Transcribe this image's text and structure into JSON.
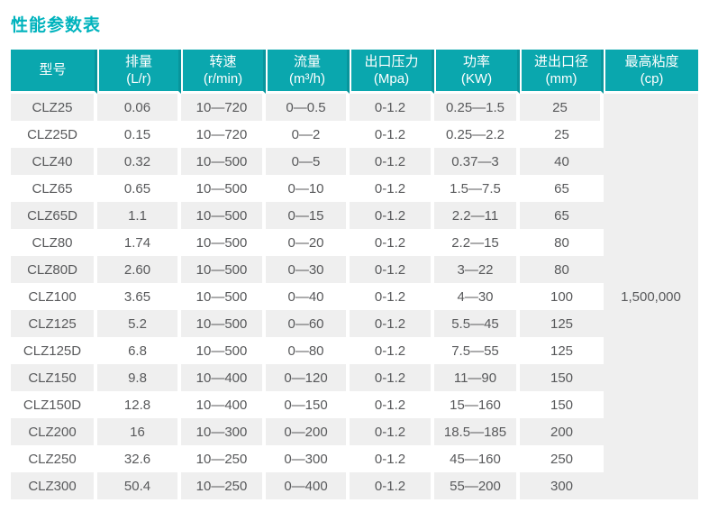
{
  "page": {
    "title": "性能参数表"
  },
  "table": {
    "columns": [
      {
        "id": "model",
        "label": "型号",
        "unit": ""
      },
      {
        "id": "displacement",
        "label": "排量",
        "unit": "(L/r)"
      },
      {
        "id": "speed",
        "label": "转速",
        "unit": "(r/min)"
      },
      {
        "id": "flow",
        "label": "流量",
        "unit": "(m³/h)"
      },
      {
        "id": "outlet-pressure",
        "label": "出口压力",
        "unit": "(Mpa)"
      },
      {
        "id": "power",
        "label": "功率",
        "unit": "(KW)"
      },
      {
        "id": "port-diameter",
        "label": "进出口径",
        "unit": "(mm)"
      },
      {
        "id": "max-viscosity",
        "label": "最高粘度",
        "unit": "(cp)"
      }
    ],
    "rows": [
      [
        "CLZ25",
        "0.06",
        "10—720",
        "0—0.5",
        "0-1.2",
        "0.25—1.5",
        "25"
      ],
      [
        "CLZ25D",
        "0.15",
        "10—720",
        "0—2",
        "0-1.2",
        "0.25—2.2",
        "25"
      ],
      [
        "CLZ40",
        "0.32",
        "10—500",
        "0—5",
        "0-1.2",
        "0.37—3",
        "40"
      ],
      [
        "CLZ65",
        "0.65",
        "10—500",
        "0—10",
        "0-1.2",
        "1.5—7.5",
        "65"
      ],
      [
        "CLZ65D",
        "1.1",
        "10—500",
        "0—15",
        "0-1.2",
        "2.2—11",
        "65"
      ],
      [
        "CLZ80",
        "1.74",
        "10—500",
        "0—20",
        "0-1.2",
        "2.2—15",
        "80"
      ],
      [
        "CLZ80D",
        "2.60",
        "10—500",
        "0—30",
        "0-1.2",
        "3—22",
        "80"
      ],
      [
        "CLZ100",
        "3.65",
        "10—500",
        "0—40",
        "0-1.2",
        "4—30",
        "100"
      ],
      [
        "CLZ125",
        "5.2",
        "10—500",
        "0—60",
        "0-1.2",
        "5.5—45",
        "125"
      ],
      [
        "CLZ125D",
        "6.8",
        "10—500",
        "0—80",
        "0-1.2",
        "7.5—55",
        "125"
      ],
      [
        "CLZ150",
        "9.8",
        "10—400",
        "0—120",
        "0-1.2",
        "11—90",
        "150"
      ],
      [
        "CLZ150D",
        "12.8",
        "10—400",
        "0—150",
        "0-1.2",
        "15—160",
        "150"
      ],
      [
        "CLZ200",
        "16",
        "10—300",
        "0—200",
        "0-1.2",
        "18.5—185",
        "200"
      ],
      [
        "CLZ250",
        "32.6",
        "10—250",
        "0—300",
        "0-1.2",
        "45—160",
        "250"
      ],
      [
        "CLZ300",
        "50.4",
        "10—250",
        "0—400",
        "0-1.2",
        "55—200",
        "300"
      ]
    ],
    "merged_max_viscosity": "1,500,000"
  },
  "colors": {
    "title": "#00b3bd",
    "header_bg": "#0aa7ae",
    "header_divider": "#08959c",
    "row_stripe": "#efefef",
    "cell_text": "#58595b",
    "header_text": "#ffffff"
  }
}
